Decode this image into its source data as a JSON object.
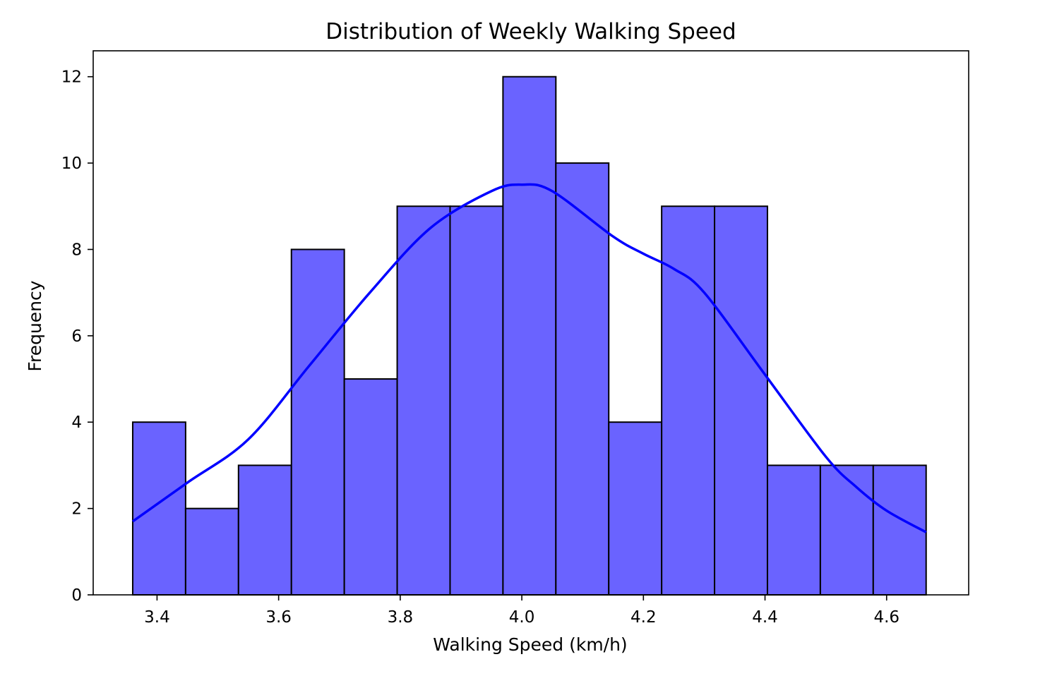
{
  "chart_data": {
    "type": "bar",
    "title": "Distribution of Weekly Walking Speed",
    "xlabel": "Walking Speed (km/h)",
    "ylabel": "Frequency",
    "xlim": [
      3.295,
      4.735
    ],
    "ylim": [
      0,
      12.6
    ],
    "xticks": [
      3.4,
      3.6,
      3.8,
      4.0,
      4.2,
      4.4,
      4.6
    ],
    "xtick_labels": [
      "3.4",
      "3.6",
      "3.8",
      "4.0",
      "4.2",
      "4.4",
      "4.6"
    ],
    "yticks": [
      0,
      2,
      4,
      6,
      8,
      10,
      12
    ],
    "ytick_labels": [
      "0",
      "2",
      "4",
      "6",
      "8",
      "10",
      "12"
    ],
    "bin_edges": [
      3.36,
      3.447,
      3.534,
      3.621,
      3.708,
      3.795,
      3.882,
      3.969,
      4.056,
      4.143,
      4.23,
      4.317,
      4.404,
      4.491,
      4.578,
      4.665
    ],
    "counts": [
      4,
      2,
      3,
      8,
      5,
      9,
      9,
      12,
      10,
      4,
      9,
      9,
      3,
      3,
      3
    ],
    "kde": {
      "x": [
        3.36,
        3.45,
        3.55,
        3.65,
        3.75,
        3.85,
        3.95,
        4.0,
        4.05,
        4.15,
        4.2,
        4.25,
        4.3,
        4.4,
        4.5,
        4.55,
        4.6,
        4.665
      ],
      "y": [
        1.7,
        2.6,
        3.6,
        5.3,
        7.0,
        8.5,
        9.35,
        9.5,
        9.35,
        8.3,
        7.9,
        7.55,
        7.0,
        5.1,
        3.2,
        2.5,
        1.95,
        1.45
      ]
    },
    "grid": false,
    "legend": "none",
    "bar_color": "#6a63ff",
    "bar_edge_color": "#000000",
    "kde_color": "#0000ff"
  }
}
